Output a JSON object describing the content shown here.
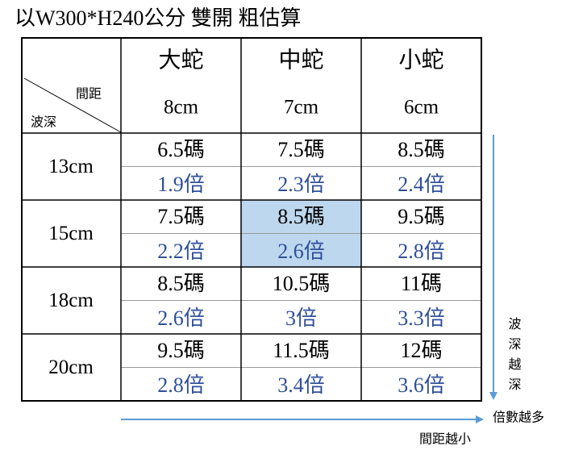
{
  "title": "以W300*H240公分 雙開 粗估算",
  "table": {
    "corner": {
      "column_label": "間距",
      "row_label": "波深"
    },
    "columns": [
      {
        "name": "大蛇",
        "spacing": "8cm"
      },
      {
        "name": "中蛇",
        "spacing": "7cm"
      },
      {
        "name": "小蛇",
        "spacing": "6cm"
      }
    ],
    "rows": [
      {
        "depth": "13cm",
        "cells": [
          {
            "yards": "6.5碼",
            "ratio": "1.9倍"
          },
          {
            "yards": "7.5碼",
            "ratio": "2.3倍"
          },
          {
            "yards": "8.5碼",
            "ratio": "2.4倍"
          }
        ]
      },
      {
        "depth": "15cm",
        "cells": [
          {
            "yards": "7.5碼",
            "ratio": "2.2倍"
          },
          {
            "yards": "8.5碼",
            "ratio": "2.6倍",
            "highlighted": true
          },
          {
            "yards": "9.5碼",
            "ratio": "2.8倍"
          }
        ]
      },
      {
        "depth": "18cm",
        "cells": [
          {
            "yards": "8.5碼",
            "ratio": "2.6倍"
          },
          {
            "yards": "10.5碼",
            "ratio": "3倍"
          },
          {
            "yards": "11碼",
            "ratio": "3.3倍"
          }
        ]
      },
      {
        "depth": "20cm",
        "cells": [
          {
            "yards": "9.5碼",
            "ratio": "2.8倍"
          },
          {
            "yards": "11.5碼",
            "ratio": "3.4倍"
          },
          {
            "yards": "12碼",
            "ratio": "3.6倍"
          }
        ]
      }
    ]
  },
  "annotations": {
    "depth_arrow": "波深越深",
    "ratio_note": "倍數越多",
    "spacing_arrow": "間距越小"
  }
}
